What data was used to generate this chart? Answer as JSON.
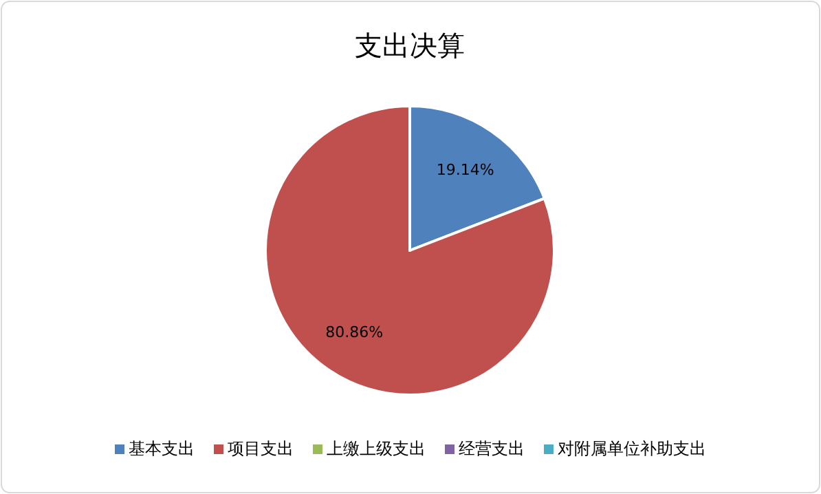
{
  "chart_data": {
    "type": "pie",
    "title": "支出决算",
    "categories": [
      "基本支出",
      "项目支出",
      "上缴上级支出",
      "经营支出",
      "对附属单位补助支出"
    ],
    "values": [
      19.14,
      80.86,
      0,
      0,
      0
    ],
    "colors": [
      "#4f81bd",
      "#c0504d",
      "#9bbb59",
      "#8064a2",
      "#4bacc6"
    ],
    "value_labels": [
      "19.14%",
      "80.86%",
      null,
      null,
      null
    ],
    "legend": "bottom"
  }
}
